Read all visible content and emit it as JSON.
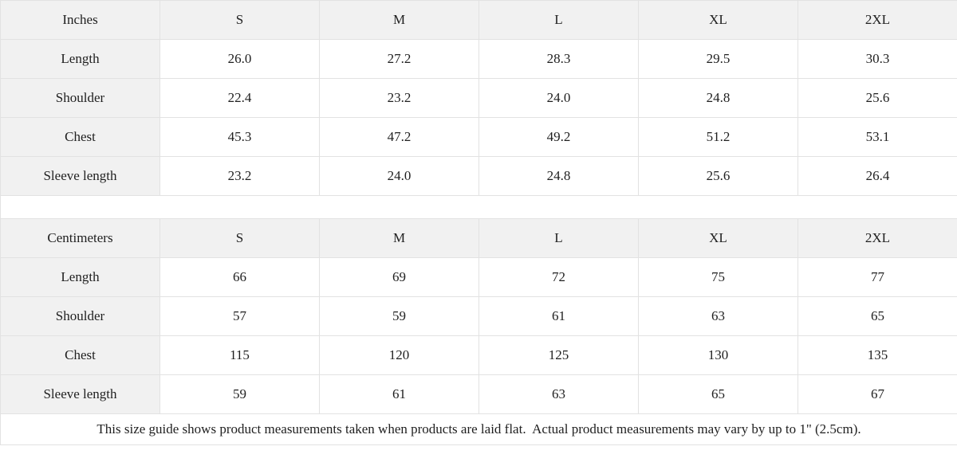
{
  "colors": {
    "background": "#ffffff",
    "header_cell_bg": "#f1f1f1",
    "border": "#e2e2e2",
    "text": "#1f1f1f"
  },
  "tables": [
    {
      "unit_label": "Inches",
      "columns": [
        "S",
        "M",
        "L",
        "XL",
        "2XL"
      ],
      "rows": [
        {
          "label": "Length",
          "values": [
            "26.0",
            "27.2",
            "28.3",
            "29.5",
            "30.3"
          ]
        },
        {
          "label": "Shoulder",
          "values": [
            "22.4",
            "23.2",
            "24.0",
            "24.8",
            "25.6"
          ]
        },
        {
          "label": "Chest",
          "values": [
            "45.3",
            "47.2",
            "49.2",
            "51.2",
            "53.1"
          ]
        },
        {
          "label": "Sleeve length",
          "values": [
            "23.2",
            "24.0",
            "24.8",
            "25.6",
            "26.4"
          ]
        }
      ]
    },
    {
      "unit_label": "Centimeters",
      "columns": [
        "S",
        "M",
        "L",
        "XL",
        "2XL"
      ],
      "rows": [
        {
          "label": "Length",
          "values": [
            "66",
            "69",
            "72",
            "75",
            "77"
          ]
        },
        {
          "label": "Shoulder",
          "values": [
            "57",
            "59",
            "61",
            "63",
            "65"
          ]
        },
        {
          "label": "Chest",
          "values": [
            "115",
            "120",
            "125",
            "130",
            "135"
          ]
        },
        {
          "label": "Sleeve length",
          "values": [
            "59",
            "61",
            "63",
            "65",
            "67"
          ]
        }
      ]
    }
  ],
  "footer_note": "This size guide shows product measurements taken when products are laid flat.  Actual product measurements may vary by up to 1\" (2.5cm)."
}
